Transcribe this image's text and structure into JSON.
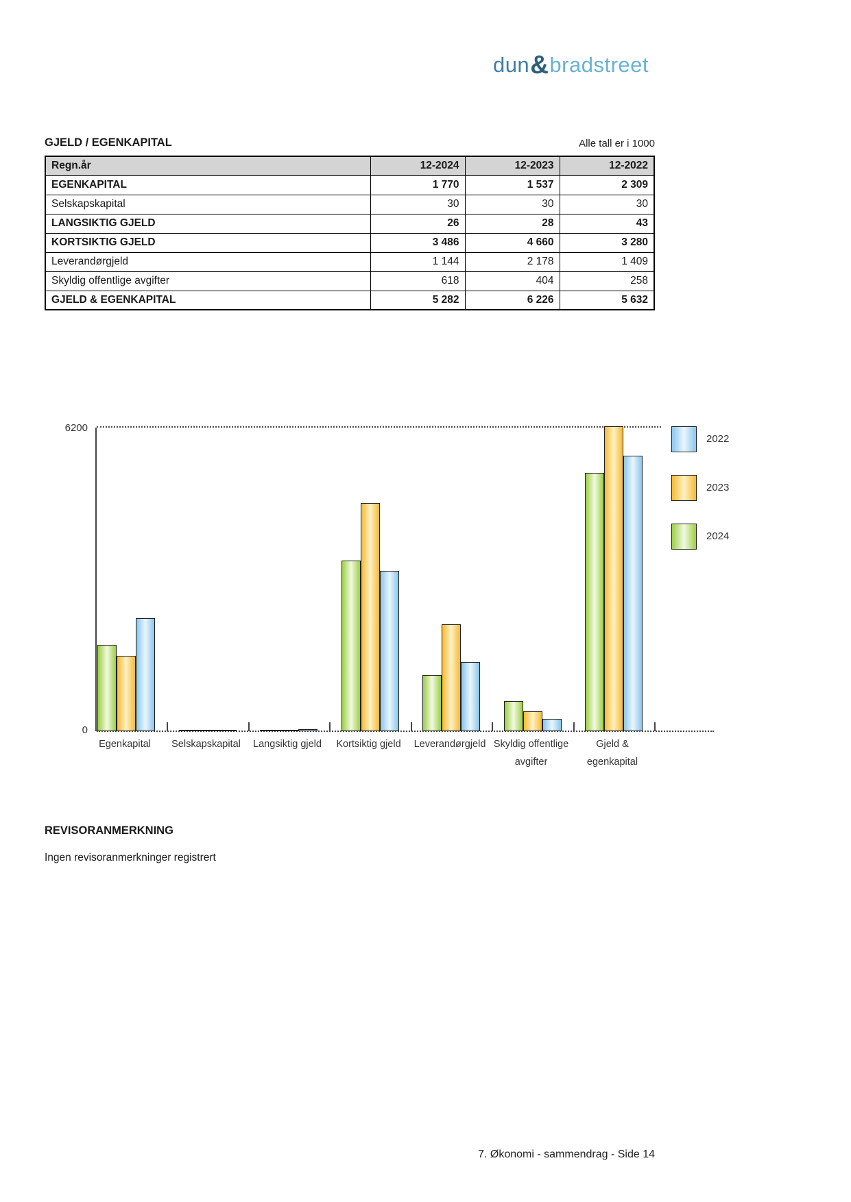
{
  "logo": {
    "part1": "dun",
    "amp": "&",
    "part2": "bradstreet"
  },
  "section": {
    "title": "GJELD / EGENKAPITAL",
    "note": "Alle tall er i 1000"
  },
  "table": {
    "columns": [
      "Regn.år",
      "12-2024",
      "12-2023",
      "12-2022"
    ],
    "rows": [
      {
        "label": "EGENKAPITAL",
        "bold": true,
        "values": [
          "1 770",
          "1 537",
          "2 309"
        ]
      },
      {
        "label": "Selskapskapital",
        "bold": false,
        "values": [
          "30",
          "30",
          "30"
        ]
      },
      {
        "label": "LANGSIKTIG GJELD",
        "bold": true,
        "values": [
          "26",
          "28",
          "43"
        ]
      },
      {
        "label": "KORTSIKTIG GJELD",
        "bold": true,
        "values": [
          "3 486",
          "4 660",
          "3 280"
        ]
      },
      {
        "label": "Leverandørgjeld",
        "bold": false,
        "values": [
          "1 144",
          "2 178",
          "1 409"
        ]
      },
      {
        "label": "Skyldig offentlige avgifter",
        "bold": false,
        "values": [
          "618",
          "404",
          "258"
        ]
      },
      {
        "label": "GJELD & EGENKAPITAL",
        "bold": true,
        "values": [
          "5 282",
          "6 226",
          "5 632"
        ]
      }
    ]
  },
  "chart_data": {
    "type": "bar",
    "title": "",
    "categories": [
      "Egenkapital",
      "Selskapskapital",
      "Langsiktig gjeld",
      "Kortsiktig gjeld",
      "Leverandørgjeld",
      "Skyldig offentlige avgifter",
      "Gjeld & egenkapital"
    ],
    "series": [
      {
        "name": "2024",
        "values": [
          1770,
          30,
          26,
          3486,
          1144,
          618,
          5282
        ],
        "color_edge": "#9ccf45",
        "color_center": "#f2f9e2"
      },
      {
        "name": "2023",
        "values": [
          1537,
          30,
          28,
          4660,
          2178,
          404,
          6226
        ],
        "color_edge": "#f6ba35",
        "color_center": "#fdf1c4"
      },
      {
        "name": "2022",
        "values": [
          2309,
          30,
          43,
          3280,
          1409,
          258,
          5632
        ],
        "color_edge": "#89c6ed",
        "color_center": "#eaf6fd"
      }
    ],
    "bar_order": [
      "2024",
      "2023",
      "2022"
    ],
    "legend_order": [
      "2022",
      "2023",
      "2024"
    ],
    "legend_position": "right",
    "xlabel": "",
    "ylabel": "",
    "ylim": [
      0,
      6200
    ],
    "yticks": [
      0,
      6200
    ],
    "grid": "top-and-bottom-dotted"
  },
  "revisor": {
    "heading": "REVISORANMERKNING",
    "text": "Ingen revisoranmerkninger registrert"
  },
  "footer": {
    "text": "7. Økonomi - sammendrag - Side 14"
  }
}
